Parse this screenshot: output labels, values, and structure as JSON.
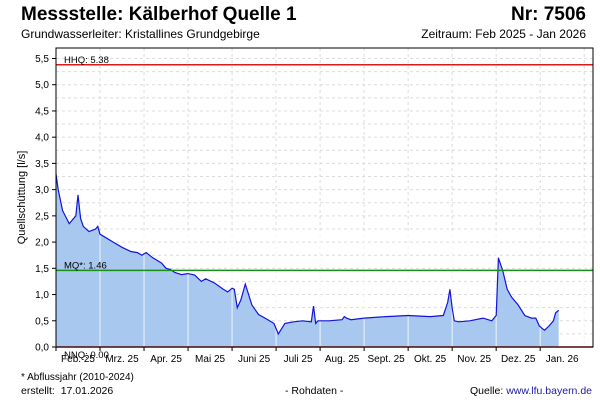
{
  "header": {
    "title": "Messstelle: Kälberhof Quelle 1",
    "station_number": "Nr: 7506",
    "aquifer": "Grundwasserleiter: Kristallines Grundgebirge",
    "period": "Zeitraum: Feb 2025 - Jan 2026"
  },
  "footer": {
    "footnote": "* Abflussjahr (2010-2024)",
    "created_label": "erstellt:",
    "created_date": "17.01.2026",
    "raw_data": "- Rohdaten -",
    "source_label": "Quelle:",
    "source_link": "www.lfu.bayern.de"
  },
  "colors": {
    "fill": "#a8c8f0",
    "line": "#1414d8",
    "hhq": "#e01818",
    "mq": "#189018",
    "nnq": "#e01818",
    "grid": "#dcdcdc"
  },
  "chart_data": {
    "type": "area",
    "title": "Messstelle: Kälberhof Quelle 1",
    "ylabel": "Quellschüttung [l/s]",
    "xlabel": "",
    "ylim": [
      0,
      5.7
    ],
    "xlim": [
      0,
      12.2
    ],
    "yticks": [
      0.0,
      0.5,
      1.0,
      1.5,
      2.0,
      2.5,
      3.0,
      3.5,
      4.0,
      4.5,
      5.0,
      5.5
    ],
    "ytick_labels": [
      "0,0",
      "0,5",
      "1,0",
      "1,5",
      "2,0",
      "2,5",
      "3,0",
      "3,5",
      "4,0",
      "4,5",
      "5,0",
      "5,5"
    ],
    "months": [
      "Feb. 25",
      "Mrz. 25",
      "Apr. 25",
      "Mai 25",
      "Juni 25",
      "Juli 25",
      "Aug. 25",
      "Sept. 25",
      "Okt. 25",
      "Nov. 25",
      "Dez. 25",
      "Jan. 26"
    ],
    "reference_lines": [
      {
        "label": "HHQ: 5.38",
        "value": 5.38,
        "color": "#e01818"
      },
      {
        "label": "MQ*: 1.46",
        "value": 1.46,
        "color": "#189018"
      },
      {
        "label": "NNQ: 0.00",
        "value": 0.0,
        "color": "#e01818"
      }
    ],
    "grid": true,
    "series": [
      {
        "x": [
          0,
          0.05,
          0.15,
          0.3,
          0.45,
          0.5,
          0.56,
          0.62,
          0.75,
          0.9,
          0.95,
          1.0,
          1.1,
          1.3,
          1.5,
          1.7,
          1.85,
          1.95,
          2.05,
          2.2,
          2.4,
          2.5,
          2.6,
          2.7,
          2.85,
          3.0,
          3.15,
          3.3,
          3.4,
          3.6,
          3.8,
          3.9,
          4.0,
          4.05,
          4.12,
          4.2,
          4.3,
          4.45,
          4.55,
          4.6,
          4.75,
          4.95,
          5.05,
          5.2,
          5.4,
          5.6,
          5.8,
          5.85,
          5.9,
          5.95,
          6.2,
          6.5,
          6.55,
          6.6,
          6.7,
          7.0,
          7.5,
          8.0,
          8.5,
          8.8,
          8.9,
          8.95,
          9.0,
          9.05,
          9.15,
          9.4,
          9.7,
          9.9,
          10.0,
          10.05,
          10.15,
          10.25,
          10.35,
          10.5,
          10.65,
          10.8,
          10.9,
          10.98,
          11.05,
          11.1,
          11.2,
          11.3,
          11.35,
          11.42
        ],
        "values": [
          3.3,
          3.0,
          2.6,
          2.35,
          2.5,
          2.9,
          2.45,
          2.3,
          2.2,
          2.25,
          2.3,
          2.15,
          2.1,
          2.0,
          1.9,
          1.82,
          1.8,
          1.75,
          1.8,
          1.7,
          1.6,
          1.5,
          1.48,
          1.42,
          1.38,
          1.4,
          1.37,
          1.25,
          1.3,
          1.22,
          1.1,
          1.05,
          1.12,
          1.1,
          0.75,
          0.9,
          1.2,
          0.8,
          0.68,
          0.62,
          0.55,
          0.45,
          0.25,
          0.45,
          0.48,
          0.5,
          0.48,
          0.78,
          0.45,
          0.5,
          0.5,
          0.52,
          0.58,
          0.55,
          0.52,
          0.55,
          0.58,
          0.6,
          0.58,
          0.6,
          0.85,
          1.1,
          0.75,
          0.5,
          0.48,
          0.5,
          0.55,
          0.5,
          0.6,
          1.7,
          1.45,
          1.1,
          0.95,
          0.8,
          0.6,
          0.55,
          0.55,
          0.4,
          0.35,
          0.32,
          0.4,
          0.5,
          0.65,
          0.7
        ]
      }
    ]
  }
}
